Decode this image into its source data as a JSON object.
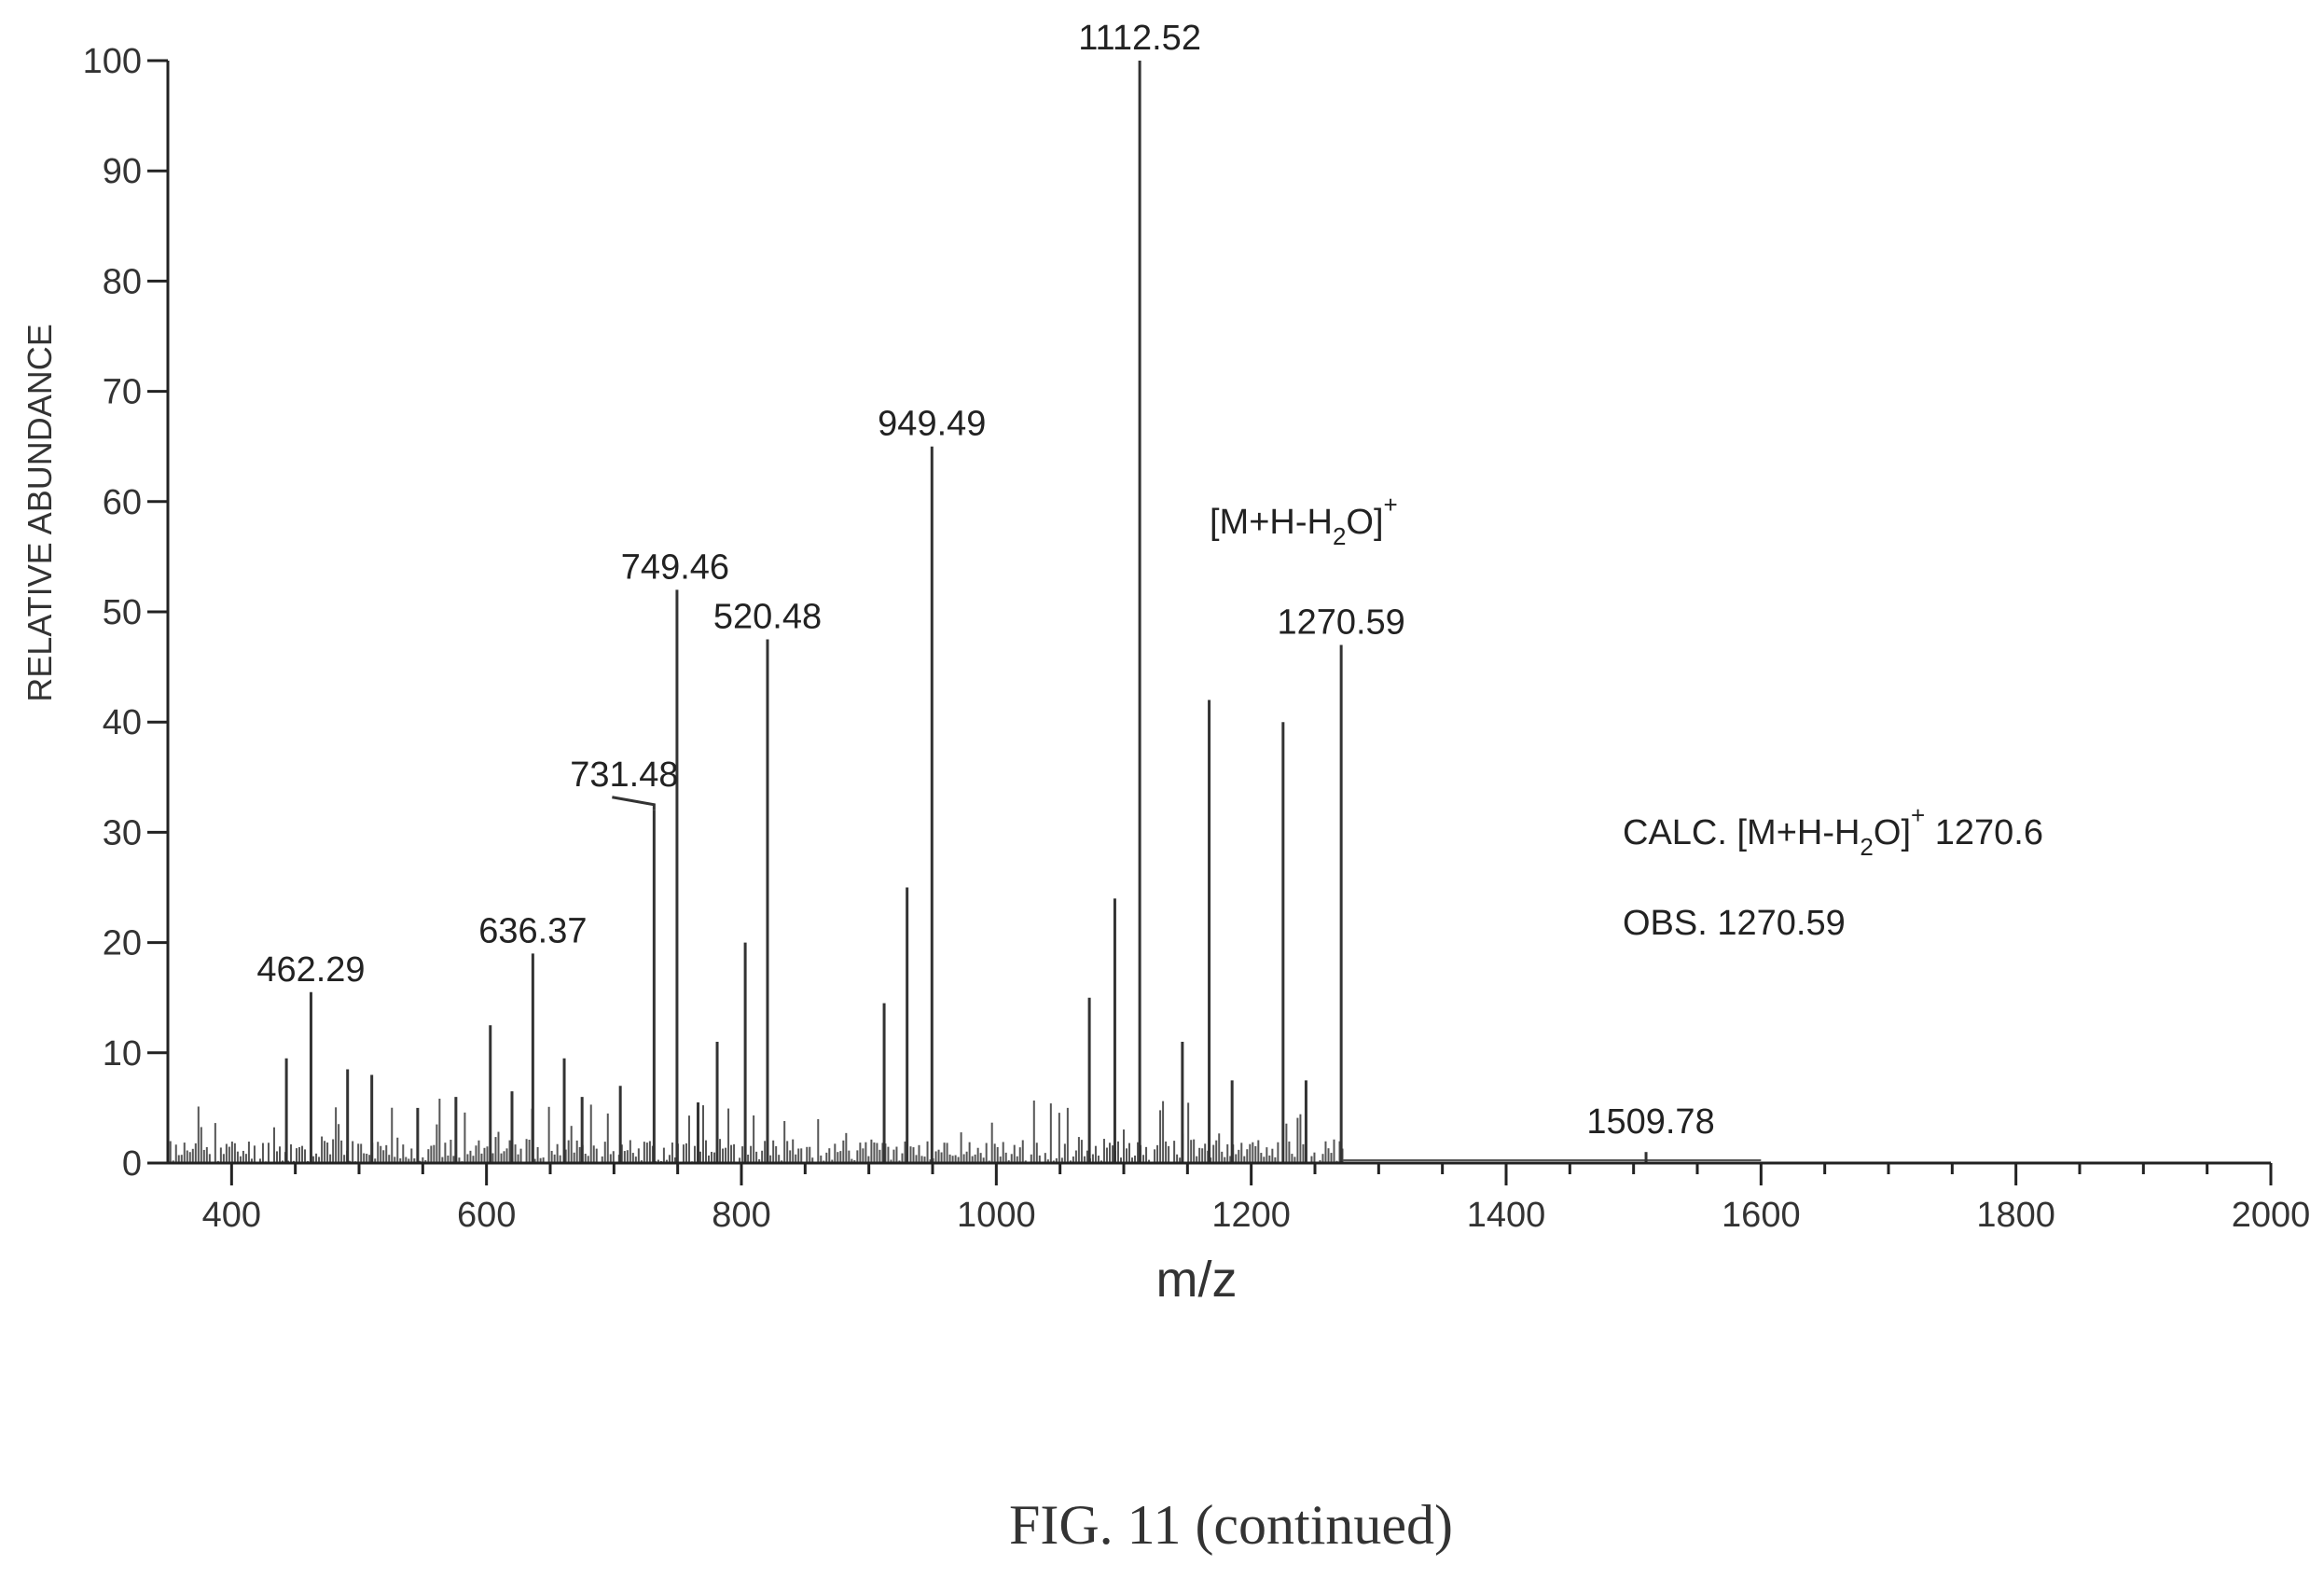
{
  "chart_data": {
    "type": "bar",
    "xlabel": "m/z",
    "ylabel": "RELATIVE ABUNDANCE",
    "xlim": [
      350,
      2000
    ],
    "ylim": [
      0,
      100
    ],
    "x_ticks": [
      400,
      600,
      800,
      1000,
      1200,
      1400,
      1600,
      1800,
      2000
    ],
    "y_ticks": [
      0,
      10,
      20,
      30,
      40,
      50,
      60,
      70,
      80,
      90,
      100
    ],
    "labeled_peaks": [
      {
        "mz": 462.29,
        "label": "462.29",
        "abundance": 15.5
      },
      {
        "mz": 636.37,
        "label": "636.37",
        "abundance": 19
      },
      {
        "mz": 731.48,
        "label": "731.48",
        "abundance": 32
      },
      {
        "mz": 749.46,
        "label": "749.46",
        "abundance": 52
      },
      {
        "mz": 820.48,
        "label": "520.48",
        "abundance": 47.5
      },
      {
        "mz": 949.49,
        "label": "949.49",
        "abundance": 65
      },
      {
        "mz": 1112.52,
        "label": "1112.52",
        "abundance": 100
      },
      {
        "mz": 1270.59,
        "label": "1270.59",
        "abundance": 47
      },
      {
        "mz": 1509.78,
        "label": "1509.78",
        "abundance": 1
      }
    ],
    "other_peaks": [
      {
        "mz": 443,
        "abundance": 9.5
      },
      {
        "mz": 491,
        "abundance": 8.5
      },
      {
        "mz": 510,
        "abundance": 8
      },
      {
        "mz": 546,
        "abundance": 5
      },
      {
        "mz": 576,
        "abundance": 6
      },
      {
        "mz": 603,
        "abundance": 12.5
      },
      {
        "mz": 620,
        "abundance": 6.5
      },
      {
        "mz": 661,
        "abundance": 9.5
      },
      {
        "mz": 675,
        "abundance": 6
      },
      {
        "mz": 705,
        "abundance": 7
      },
      {
        "mz": 766,
        "abundance": 5.5
      },
      {
        "mz": 781,
        "abundance": 11
      },
      {
        "mz": 803,
        "abundance": 20
      },
      {
        "mz": 912,
        "abundance": 14.5
      },
      {
        "mz": 930,
        "abundance": 25
      },
      {
        "mz": 1073,
        "abundance": 15
      },
      {
        "mz": 1093,
        "abundance": 24
      },
      {
        "mz": 1146,
        "abundance": 11
      },
      {
        "mz": 1167,
        "abundance": 42
      },
      {
        "mz": 1185,
        "abundance": 7.5
      },
      {
        "mz": 1225,
        "abundance": 40
      },
      {
        "mz": 1243,
        "abundance": 7.5
      }
    ],
    "annotations": {
      "ion_label": "[M+H-H",
      "ion_sub": "2",
      "ion_close": "O]",
      "ion_sup": "+",
      "calc_prefix": "CALC. [M+H-H",
      "calc_sub": "2",
      "calc_close": "O]",
      "calc_sup": "+",
      "calc_value": " 1270.6",
      "obs": "OBS. 1270.59"
    }
  },
  "caption": "FIG. 11 (continued)"
}
